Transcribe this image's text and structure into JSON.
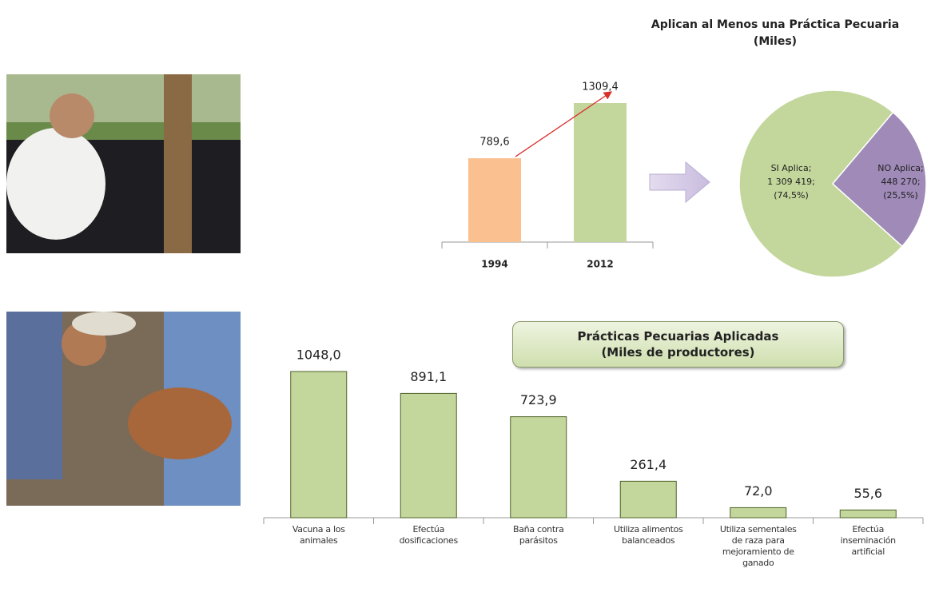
{
  "chart_data": [
    {
      "type": "bar",
      "categories": [
        "1994",
        "2012"
      ],
      "values": [
        789.6,
        1309.4
      ],
      "value_labels": [
        "789,6",
        "1309,4"
      ],
      "colors": [
        "#fac090",
        "#c3d69b"
      ]
    },
    {
      "type": "pie",
      "title": "Aplican al Menos una Práctica Pecuaria",
      "subtitle": "(Miles)",
      "categories": [
        "SI Aplica",
        "NO Aplica"
      ],
      "values": [
        74.5,
        25.5
      ],
      "value_labels": [
        "(74,5%)",
        "(25,5%)"
      ],
      "counts": [
        1309419,
        448270
      ],
      "count_labels": [
        "1 309 419",
        "448 270"
      ],
      "separator": ";",
      "colors": [
        "#c3d69b",
        "#9f8ab8"
      ]
    },
    {
      "type": "bar",
      "title": "Prácticas Pecuarias Aplicadas",
      "subtitle": "(Miles de productores)",
      "categories": [
        "Vacuna a los animales",
        "Efectúa dosificaciones",
        "Baña contra parásitos",
        "Utiliza alimentos balanceados",
        "Utiliza sementales de raza para mejoramiento de ganado",
        "Efectúa inseminación artificial"
      ],
      "values": [
        1048.0,
        891.1,
        723.9,
        261.4,
        72.0,
        55.6
      ],
      "value_labels": [
        "1048,0",
        "891,1",
        "723,9",
        "261,4",
        "72,0",
        "55,6"
      ],
      "color": "#c3d69b"
    }
  ]
}
